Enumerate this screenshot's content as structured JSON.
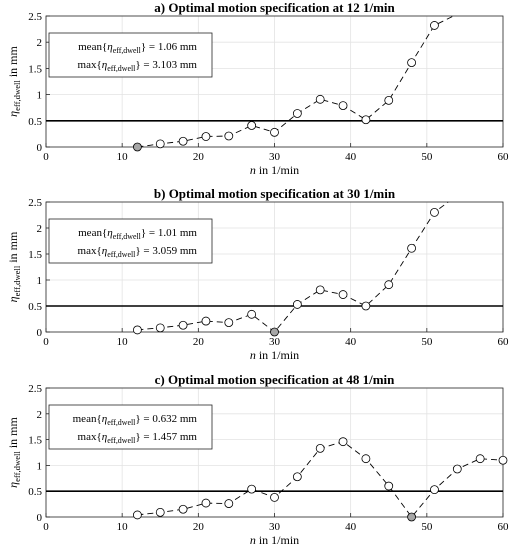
{
  "chart_data": [
    {
      "type": "line",
      "title": "a) Optimal motion specification at 12 1/min",
      "xlabel": "n in 1/min",
      "ylabel": "η_eff,dwell in mm",
      "xlim": [
        0,
        60
      ],
      "ylim": [
        0,
        2.5
      ],
      "xticks": [
        "0",
        "10",
        "20",
        "30",
        "40",
        "50",
        "60"
      ],
      "yticks": [
        "0",
        "0.5",
        "1",
        "1.5",
        "2",
        "2.5"
      ],
      "threshold": 0.5,
      "grid": true,
      "legend_position": "top-left",
      "mean_label": "mean{η_eff,dwell} = 1.06 mm",
      "max_label": "max{η_eff,dwell} = 3.103 mm",
      "highlight_x": 12,
      "x": [
        12,
        15,
        18,
        21,
        24,
        27,
        30,
        33,
        36,
        39,
        42,
        45,
        48,
        51
      ],
      "y": [
        0.0,
        0.06,
        0.11,
        0.2,
        0.21,
        0.41,
        0.28,
        0.64,
        0.91,
        0.79,
        0.52,
        0.89,
        1.61,
        2.32
      ],
      "line_continues_to": [
        53.5,
        2.5
      ]
    },
    {
      "type": "line",
      "title": "b) Optimal motion specification at 30 1/min",
      "xlabel": "n in 1/min",
      "ylabel": "η_eff,dwell in mm",
      "xlim": [
        0,
        60
      ],
      "ylim": [
        0,
        2.5
      ],
      "xticks": [
        "0",
        "10",
        "20",
        "30",
        "40",
        "50",
        "60"
      ],
      "yticks": [
        "0",
        "0.5",
        "1",
        "1.5",
        "2",
        "2.5"
      ],
      "threshold": 0.5,
      "grid": true,
      "legend_position": "top-left",
      "mean_label": "mean{η_eff,dwell} = 1.01 mm",
      "max_label": "max{η_eff,dwell} = 3.059 mm",
      "highlight_x": 30,
      "x": [
        12,
        15,
        18,
        21,
        24,
        27,
        30,
        33,
        36,
        39,
        42,
        45,
        48,
        51
      ],
      "y": [
        0.04,
        0.08,
        0.13,
        0.21,
        0.18,
        0.34,
        0.0,
        0.53,
        0.81,
        0.72,
        0.5,
        0.91,
        1.61,
        2.3
      ],
      "line_continues_to": [
        52.8,
        2.5
      ]
    },
    {
      "type": "line",
      "title": "c) Optimal motion specification at 48 1/min",
      "xlabel": "n in 1/min",
      "ylabel": "η_eff,dwell in mm",
      "xlim": [
        0,
        60
      ],
      "ylim": [
        0,
        2.5
      ],
      "xticks": [
        "0",
        "10",
        "20",
        "30",
        "40",
        "50",
        "60"
      ],
      "yticks": [
        "0",
        "0.5",
        "1",
        "1.5",
        "2",
        "2.5"
      ],
      "threshold": 0.5,
      "grid": true,
      "legend_position": "top-left",
      "mean_label": "mean{η_eff,dwell} = 0.632 mm",
      "max_label": "max{η_eff,dwell} = 1.457 mm",
      "highlight_x": 48,
      "x": [
        12,
        15,
        18,
        21,
        24,
        27,
        30,
        33,
        36,
        39,
        42,
        45,
        48,
        51,
        54,
        57,
        60
      ],
      "y": [
        0.04,
        0.09,
        0.15,
        0.27,
        0.26,
        0.54,
        0.38,
        0.78,
        1.33,
        1.46,
        1.13,
        0.6,
        0.0,
        0.53,
        0.93,
        1.13,
        1.1
      ]
    }
  ],
  "colors": {
    "marker_fill": "#ffffff",
    "marker_highlight": "#a6a6a6",
    "line": "#000000",
    "grid": "#e3e3e3"
  }
}
